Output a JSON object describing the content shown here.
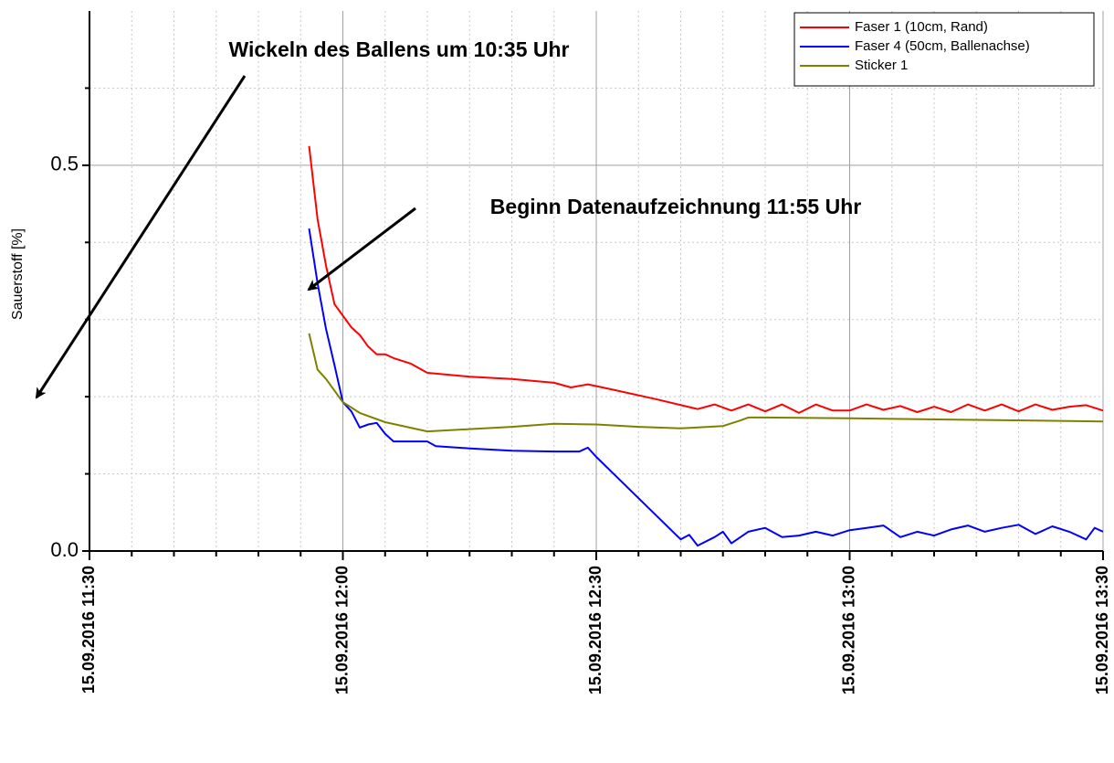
{
  "chart_data": {
    "type": "line",
    "y_label": "Sauerstoff [%]",
    "annotations": [
      "Wickeln des Ballens um 10:35 Uhr",
      "Beginn Datenaufzeichnung 11:55 Uhr"
    ],
    "xlim": [
      "15.09.2016 11:30",
      "15.09.2016 13:30"
    ],
    "xticks": [
      "15.09.2016 11:30",
      "15.09.2016 12:00",
      "15.09.2016 12:30",
      "15.09.2016 13:00",
      "15.09.2016 13:30"
    ],
    "xminorticks": [
      "15.09.2016 11:35",
      "15.09.2016 11:40",
      "15.09.2016 11:45",
      "15.09.2016 11:50",
      "15.09.2016 11:55",
      "15.09.2016 12:05",
      "15.09.2016 12:10",
      "15.09.2016 12:15",
      "15.09.2016 12:20",
      "15.09.2016 12:25",
      "15.09.2016 12:35",
      "15.09.2016 12:40",
      "15.09.2016 12:45",
      "15.09.2016 12:50",
      "15.09.2016 12:55",
      "15.09.2016 13:05",
      "15.09.2016 13:10",
      "15.09.2016 13:15",
      "15.09.2016 13:20",
      "15.09.2016 13:25"
    ],
    "ylim": [
      0,
      0.7
    ],
    "yticks": [
      {
        "value": 0,
        "label": "0.0"
      },
      0.5
    ],
    "yminorticks": [
      0.1,
      0.2,
      0.3,
      0.4,
      0.6
    ],
    "grid": true,
    "legend": "upper right",
    "series": [
      {
        "name": "Faser 1 (10cm, Rand)",
        "color": "#ff0000",
        "x": [
          "15.09.2016 11:56",
          "15.09.2016 11:57",
          "15.09.2016 11:58",
          "15.09.2016 11:59",
          "15.09.2016 12:00",
          "15.09.2016 12:01",
          "15.09.2016 12:02",
          "15.09.2016 12:03",
          "15.09.2016 12:04",
          "15.09.2016 12:05",
          "15.09.2016 12:06",
          "15.09.2016 12:08",
          "15.09.2016 12:10",
          "15.09.2016 12:15",
          "15.09.2016 12:20",
          "15.09.2016 12:25",
          "15.09.2016 12:27",
          "15.09.2016 12:29",
          "15.09.2016 12:32",
          "15.09.2016 12:37",
          "15.09.2016 12:42",
          "15.09.2016 12:44",
          "15.09.2016 12:46",
          "15.09.2016 12:48",
          "15.09.2016 12:50",
          "15.09.2016 12:52",
          "15.09.2016 12:54",
          "15.09.2016 12:56",
          "15.09.2016 12:58",
          "15.09.2016 13:00",
          "15.09.2016 13:02",
          "15.09.2016 13:04",
          "15.09.2016 13:06",
          "15.09.2016 13:08",
          "15.09.2016 13:10",
          "15.09.2016 13:12",
          "15.09.2016 13:14",
          "15.09.2016 13:16",
          "15.09.2016 13:18",
          "15.09.2016 13:20",
          "15.09.2016 13:22",
          "15.09.2016 13:24",
          "15.09.2016 13:26",
          "15.09.2016 13:28",
          "15.09.2016 13:30"
        ],
        "values": [
          0.525,
          0.43,
          0.37,
          0.32,
          0.305,
          0.29,
          0.28,
          0.265,
          0.255,
          0.255,
          0.25,
          0.243,
          0.231,
          0.226,
          0.223,
          0.218,
          0.212,
          0.216,
          0.209,
          0.197,
          0.184,
          0.19,
          0.182,
          0.19,
          0.181,
          0.19,
          0.179,
          0.19,
          0.182,
          0.182,
          0.19,
          0.183,
          0.188,
          0.18,
          0.187,
          0.18,
          0.19,
          0.182,
          0.19,
          0.181,
          0.19,
          0.183,
          0.187,
          0.189,
          0.182
        ]
      },
      {
        "name": "Faser 4 (50cm, Ballenachse)",
        "color": "#0000ff",
        "x": [
          "15.09.2016 11:56",
          "15.09.2016 11:57",
          "15.09.2016 11:58",
          "15.09.2016 11:59",
          "15.09.2016 12:00",
          "15.09.2016 12:01",
          "15.09.2016 12:02",
          "15.09.2016 12:03",
          "15.09.2016 12:04",
          "15.09.2016 12:05",
          "15.09.2016 12:06",
          "15.09.2016 12:10",
          "15.09.2016 12:11",
          "15.09.2016 12:15",
          "15.09.2016 12:20",
          "15.09.2016 12:25",
          "15.09.2016 12:28",
          "15.09.2016 12:29",
          "15.09.2016 12:30",
          "15.09.2016 12:40",
          "15.09.2016 12:41",
          "15.09.2016 12:42",
          "15.09.2016 12:44",
          "15.09.2016 12:45",
          "15.09.2016 12:46",
          "15.09.2016 12:48",
          "15.09.2016 12:50",
          "15.09.2016 12:52",
          "15.09.2016 12:54",
          "15.09.2016 12:56",
          "15.09.2016 12:58",
          "15.09.2016 13:00",
          "15.09.2016 13:02",
          "15.09.2016 13:04",
          "15.09.2016 13:06",
          "15.09.2016 13:08",
          "15.09.2016 13:10",
          "15.09.2016 13:12",
          "15.09.2016 13:14",
          "15.09.2016 13:16",
          "15.09.2016 13:18",
          "15.09.2016 13:20",
          "15.09.2016 13:22",
          "15.09.2016 13:24",
          "15.09.2016 13:26",
          "15.09.2016 13:28",
          "15.09.2016 13:29",
          "15.09.2016 13:30"
        ],
        "values": [
          0.418,
          0.347,
          0.288,
          0.241,
          0.193,
          0.181,
          0.16,
          0.164,
          0.166,
          0.152,
          0.142,
          0.142,
          0.136,
          0.133,
          0.13,
          0.129,
          0.129,
          0.134,
          0.122,
          0.015,
          0.021,
          0.007,
          0.018,
          0.025,
          0.01,
          0.025,
          0.03,
          0.018,
          0.02,
          0.025,
          0.02,
          0.027,
          0.03,
          0.033,
          0.018,
          0.025,
          0.02,
          0.028,
          0.033,
          0.025,
          0.03,
          0.034,
          0.022,
          0.032,
          0.025,
          0.015,
          0.03,
          0.025
        ]
      },
      {
        "name": "Sticker 1",
        "color": "#808000",
        "x": [
          "15.09.2016 11:56",
          "15.09.2016 11:57",
          "15.09.2016 11:58",
          "15.09.2016 12:00",
          "15.09.2016 12:02",
          "15.09.2016 12:05",
          "15.09.2016 12:10",
          "15.09.2016 12:15",
          "15.09.2016 12:20",
          "15.09.2016 12:25",
          "15.09.2016 12:30",
          "15.09.2016 12:35",
          "15.09.2016 12:40",
          "15.09.2016 12:45",
          "15.09.2016 12:47",
          "15.09.2016 12:48",
          "15.09.2016 12:50",
          "15.09.2016 13:00",
          "15.09.2016 13:30"
        ],
        "values": [
          0.282,
          0.235,
          0.223,
          0.193,
          0.179,
          0.167,
          0.155,
          0.158,
          0.161,
          0.165,
          0.164,
          0.161,
          0.159,
          0.162,
          0.169,
          0.173,
          0.173,
          0.172,
          0.168
        ]
      }
    ]
  }
}
